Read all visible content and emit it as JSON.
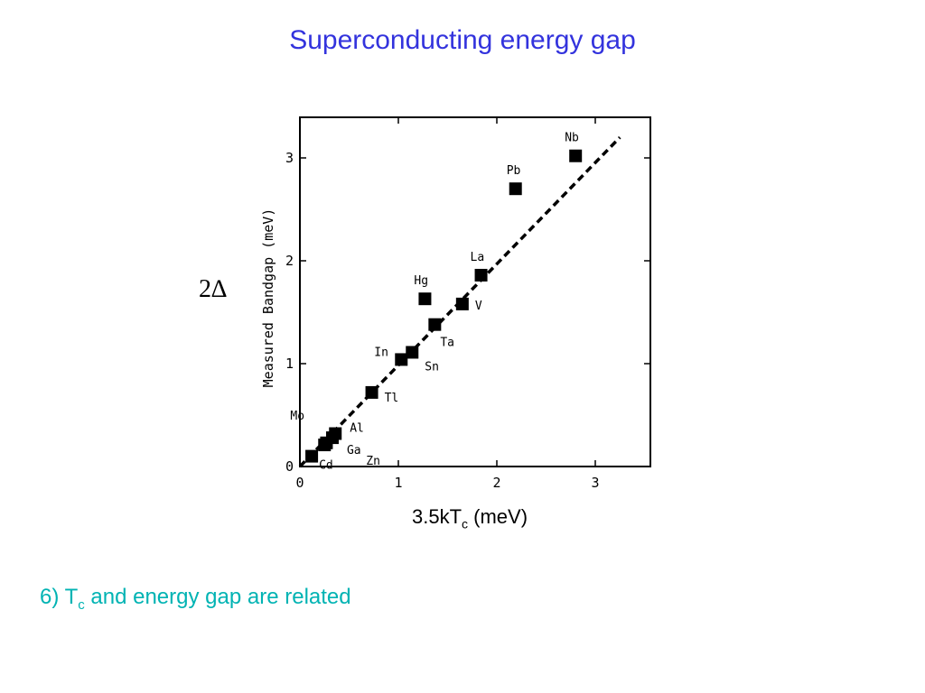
{
  "slide": {
    "title": "Superconducting energy gap",
    "side_label": "2∆",
    "x_caption": {
      "main": "3.5kT",
      "sub": "c",
      "unit": " (meV)"
    },
    "note": {
      "prefix": "6) T",
      "sub": "c",
      "rest": " and energy gap are related"
    }
  },
  "colors": {
    "title": "#3333dd",
    "note": "#00b3b3",
    "marks": "#000000"
  },
  "chart_data": {
    "type": "scatter",
    "title": "",
    "xlabel": "",
    "ylabel": "Measured Bandgap (meV)",
    "xlim": [
      0,
      3.5
    ],
    "ylim": [
      0,
      3.3
    ],
    "xticks": [
      0,
      1,
      2,
      3
    ],
    "yticks": [
      0,
      1,
      2,
      3
    ],
    "grid": false,
    "fit_line": {
      "style": "dashed",
      "from": [
        0,
        0
      ],
      "to": [
        3.25,
        3.2
      ]
    },
    "points": [
      {
        "label": "Cd",
        "x": 0.12,
        "y": 0.1
      },
      {
        "label": "Zn",
        "x": 0.25,
        "y": 0.21
      },
      {
        "label": "Mo",
        "x": 0.27,
        "y": 0.23
      },
      {
        "label": "Ga",
        "x": 0.33,
        "y": 0.28
      },
      {
        "label": "Al",
        "x": 0.36,
        "y": 0.32
      },
      {
        "label": "Tl",
        "x": 0.73,
        "y": 0.72
      },
      {
        "label": "In",
        "x": 1.03,
        "y": 1.04
      },
      {
        "label": "Sn",
        "x": 1.14,
        "y": 1.11
      },
      {
        "label": "Hg",
        "x": 1.27,
        "y": 1.63
      },
      {
        "label": "Ta",
        "x": 1.37,
        "y": 1.38
      },
      {
        "label": "V",
        "x": 1.65,
        "y": 1.58
      },
      {
        "label": "La",
        "x": 1.84,
        "y": 1.86
      },
      {
        "label": "Pb",
        "x": 2.19,
        "y": 2.7
      },
      {
        "label": "Nb",
        "x": 2.8,
        "y": 3.02
      }
    ]
  }
}
